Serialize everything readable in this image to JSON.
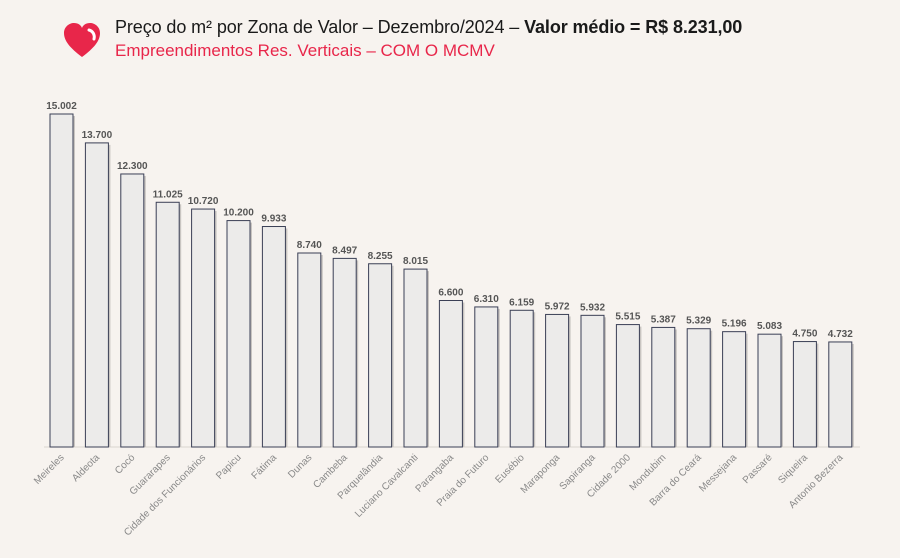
{
  "header": {
    "title_main": "Preço do m² por Zona de Valor – Dezembro/2024 – ",
    "title_bold": "Valor médio = R$ 8.231,00",
    "subtitle": "Empreendimentos Res. Verticais – COM O MCMV",
    "logo_icon": "heart-logo-icon",
    "accent_color": "#e8264a"
  },
  "chart_data": {
    "type": "bar",
    "categories": [
      "Meireles",
      "Aldeota",
      "Cocó",
      "Guararapes",
      "Cidade dos Funcionários",
      "Papicu",
      "Fátima",
      "Dunas",
      "Cambeba",
      "Parquelândia",
      "Luciano Cavalcanti",
      "Parangaba",
      "Praia do Futuro",
      "Eusébio",
      "Maraponga",
      "Sapiranga",
      "Cidade 2000",
      "Mondubim",
      "Barra do Ceará",
      "Messejana",
      "Passaré",
      "Siqueira",
      "Antonio Bezerra"
    ],
    "values": [
      15002,
      13700,
      12300,
      11025,
      10720,
      10200,
      9933,
      8740,
      8497,
      8255,
      8015,
      6600,
      6310,
      6159,
      5972,
      5932,
      5515,
      5387,
      5329,
      5196,
      5083,
      4750,
      4732
    ],
    "value_labels": [
      "15.002",
      "13.700",
      "12.300",
      "11.025",
      "10.720",
      "10.200",
      "9.933",
      "8.740",
      "8.497",
      "8.255",
      "8.015",
      "6.600",
      "6.310",
      "6.159",
      "5.972",
      "5.932",
      "5.515",
      "5.387",
      "5.329",
      "5.196",
      "5.083",
      "4.750",
      "4.732"
    ],
    "ylim": [
      0,
      15002
    ],
    "grid": false,
    "bar_fill": "#ecebea",
    "bar_stroke": "#3a3f55"
  }
}
